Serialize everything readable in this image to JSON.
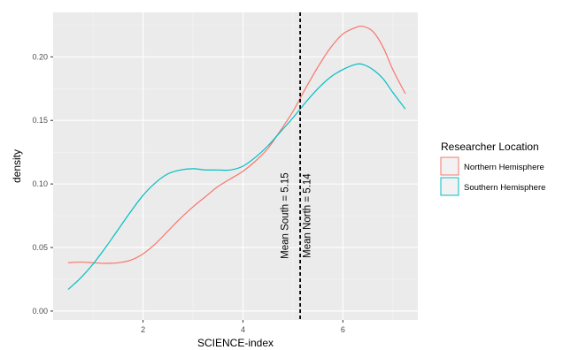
{
  "chart_data": {
    "type": "line",
    "xlabel": "SCIENCE-index",
    "ylabel": "density",
    "xlim": [
      0.2,
      7.5
    ],
    "ylim": [
      -0.007,
      0.235
    ],
    "x_ticks": [
      2,
      4,
      6
    ],
    "y_ticks": [
      0.0,
      0.05,
      0.1,
      0.15,
      0.2
    ],
    "x_tick_labels": [
      "2",
      "4",
      "6"
    ],
    "y_tick_labels": [
      "0.00",
      "0.05",
      "0.10",
      "0.15",
      "0.20"
    ],
    "grid": true,
    "legend": {
      "title": "Researcher Location",
      "position": "right"
    },
    "series": [
      {
        "name": "Northern Hemisphere",
        "color": "#F8766D",
        "x": [
          0.5,
          0.75,
          1.0,
          1.25,
          1.5,
          1.75,
          2.0,
          2.25,
          2.5,
          2.75,
          3.0,
          3.25,
          3.5,
          3.75,
          4.0,
          4.25,
          4.5,
          4.75,
          5.0,
          5.25,
          5.5,
          5.75,
          6.0,
          6.25,
          6.4,
          6.6,
          6.8,
          7.0,
          7.25
        ],
        "y": [
          0.038,
          0.0385,
          0.038,
          0.0375,
          0.038,
          0.04,
          0.045,
          0.053,
          0.063,
          0.073,
          0.082,
          0.09,
          0.098,
          0.104,
          0.11,
          0.118,
          0.128,
          0.142,
          0.157,
          0.175,
          0.192,
          0.207,
          0.218,
          0.223,
          0.224,
          0.22,
          0.208,
          0.19,
          0.171
        ]
      },
      {
        "name": "Southern Hemisphere",
        "color": "#00BFC4",
        "x": [
          0.5,
          0.75,
          1.0,
          1.25,
          1.5,
          1.75,
          2.0,
          2.25,
          2.5,
          2.75,
          3.0,
          3.25,
          3.5,
          3.75,
          4.0,
          4.25,
          4.5,
          4.75,
          5.0,
          5.25,
          5.5,
          5.75,
          6.0,
          6.25,
          6.4,
          6.6,
          6.8,
          7.0,
          7.25
        ],
        "y": [
          0.017,
          0.026,
          0.037,
          0.05,
          0.064,
          0.078,
          0.091,
          0.101,
          0.108,
          0.111,
          0.112,
          0.111,
          0.111,
          0.111,
          0.114,
          0.121,
          0.13,
          0.141,
          0.152,
          0.164,
          0.175,
          0.184,
          0.19,
          0.194,
          0.194,
          0.19,
          0.183,
          0.172,
          0.159
        ]
      }
    ],
    "vline": {
      "x": 5.145,
      "style": "dashed",
      "color": "#000000"
    },
    "annotations": [
      {
        "text": "Mean South = 5.15",
        "x": 4.9,
        "y": 0.075
      },
      {
        "text": "Mean North = 5.14",
        "x": 5.35,
        "y": 0.075
      }
    ]
  }
}
